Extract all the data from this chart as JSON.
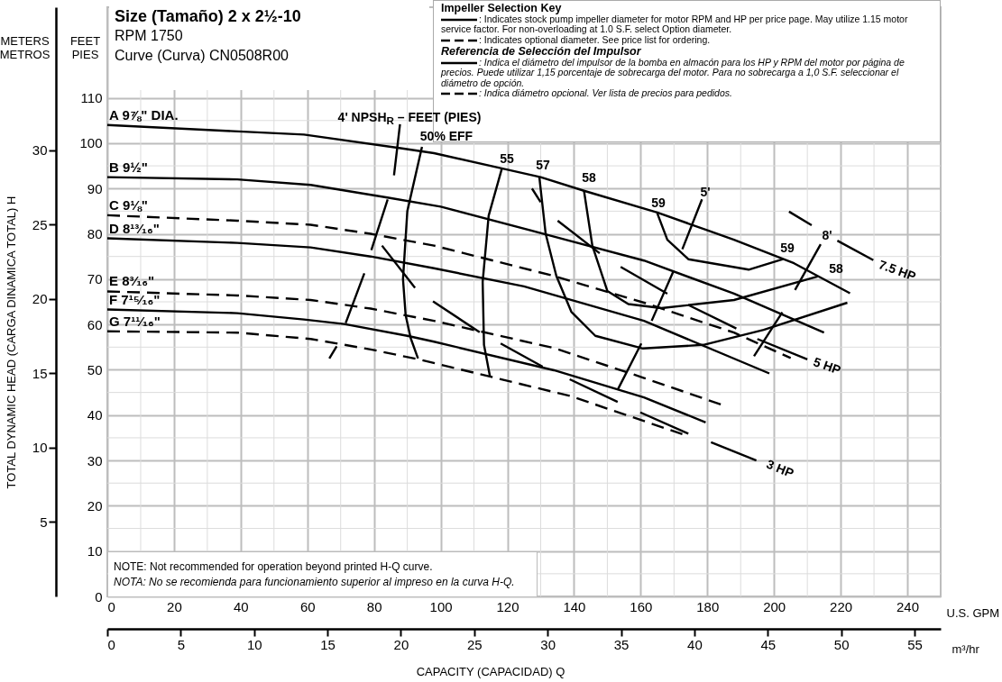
{
  "chart_data": {
    "type": "line",
    "title": "Size (Tamaño) 2 x 2½-10",
    "subtitle": "RPM 1750\nCurve (Curva) CN0508R00",
    "xlabel": "U.S. GPM",
    "x2label": "m³/hr",
    "ylabel": "FEET\nPIES",
    "y2label": "METERS\nMETROS",
    "xlim": [
      0,
      250
    ],
    "xticks": [
      0,
      20,
      40,
      60,
      80,
      100,
      120,
      140,
      160,
      180,
      200,
      220,
      240
    ],
    "x2lim": [
      0,
      56.78
    ],
    "x2ticks": [
      0,
      5,
      10,
      15,
      20,
      25,
      30,
      35,
      40,
      45,
      50,
      55
    ],
    "ylim": [
      0,
      130
    ],
    "yticks": [
      0,
      10,
      20,
      30,
      40,
      50,
      60,
      70,
      80,
      90,
      100,
      110
    ],
    "y2lim": [
      0,
      39.62
    ],
    "y2ticks": [
      5,
      10,
      15,
      20,
      25,
      30
    ],
    "grid": true,
    "series": [
      {
        "name": "A 9⅞\" DIA.",
        "color": "#000000",
        "x": [
          0,
          59,
          88,
          98,
          118,
          130,
          143,
          165,
          188,
          206,
          222.8
        ],
        "values": [
          104,
          101.9,
          98.9,
          97.8,
          94.5,
          92.5,
          89.5,
          84.7,
          78.7,
          73.5,
          66.9
        ]
      },
      {
        "name": "B 9½\"",
        "color": "#000000",
        "x": [
          0,
          39,
          61,
          84,
          100,
          134,
          161,
          188,
          215
        ],
        "values": [
          92.5,
          92,
          90.8,
          88,
          86,
          79.4,
          74.1,
          66.8,
          58.2
        ]
      },
      {
        "name": "C 9⅛\"",
        "color": "#000000",
        "line_style": "dashed",
        "x": [
          0,
          39,
          61,
          79,
          98,
          134,
          161,
          188,
          205
        ],
        "values": [
          84.1,
          82.9,
          82,
          80,
          77.4,
          70.7,
          64.8,
          58.2,
          52.6
        ]
      },
      {
        "name": "D 8¹³⁄₁₆\"",
        "color": "#000000",
        "x": [
          0,
          39,
          61,
          79,
          98,
          125,
          161,
          198.6
        ],
        "values": [
          79,
          78,
          77,
          75,
          72.4,
          68.4,
          60.8,
          49.2
        ]
      },
      {
        "name": "E 8³⁄₁₆\"",
        "color": "#000000",
        "line_style": "dashed",
        "x": [
          0,
          39,
          61,
          79,
          98,
          134,
          161,
          184.7
        ],
        "values": [
          67.3,
          66.4,
          65.4,
          63.5,
          60.8,
          54.8,
          48.2,
          42.2
        ]
      },
      {
        "name": "F 7¹⁵⁄₁₆\"",
        "color": "#000000",
        "x": [
          0,
          39,
          59,
          71,
          90,
          98,
          134,
          161,
          179.5
        ],
        "values": [
          63.3,
          62.5,
          61.1,
          60.1,
          57.5,
          56.2,
          49.9,
          43.9,
          38.4
        ]
      },
      {
        "name": "G 7¹¹⁄₁₆\"",
        "color": "#000000",
        "line_style": "dashed",
        "x": [
          0,
          39,
          61,
          79,
          94,
          139,
          172.5
        ],
        "values": [
          58.5,
          58.2,
          56.8,
          54.5,
          52.2,
          44.2,
          35.8
        ]
      },
      {
        "color": "#000000",
        "x": [
          94.4,
          90,
          88.7,
          89.5,
          91,
          93.2
        ],
        "values": [
          99.2,
          85,
          70,
          62,
          57,
          52.5
        ]
      },
      {
        "color": "#000000",
        "x": [
          118.4,
          114.4,
          112.6,
          113,
          114.8
        ],
        "values": [
          94.5,
          84,
          69.4,
          55.5,
          48.5
        ]
      },
      {
        "color": "#000000",
        "x": [
          129.6,
          131.5,
          134.7,
          139.2,
          146.4,
          160.7,
          178.8,
          196.9,
          222
        ],
        "values": [
          92.5,
          80,
          70.7,
          62.8,
          57.5,
          54.7,
          55.5,
          58.8,
          64.8
        ]
      },
      {
        "color": "#000000",
        "x": [
          143,
          145.5,
          150,
          156.3,
          166.2,
          188,
          213.1
        ],
        "values": [
          89.5,
          77.4,
          67.4,
          64.5,
          63.6,
          65.4,
          70.6
        ]
      },
      {
        "color": "#000000",
        "x": [
          165,
          168,
          174.3,
          192.4,
          202.7
        ],
        "values": [
          84.5,
          78.7,
          74.4,
          72.1,
          74.4
        ]
      },
      {
        "color": "#000000",
        "x": [
          87.8,
          86,
          85,
          84.1,
          79.2,
          78,
          77.1,
          71.5,
          70,
          68.8,
          66.6
        ],
        "values": [
          104.2,
          92.9,
          null,
          87.6,
          76.4,
          null,
          71.3,
          60.3,
          null,
          55.2,
          52.5
        ]
      },
      {
        "color": "#000000",
        "x": [
          178.4,
          172.5,
          171,
          169.8,
          163.3,
          162,
          160.2,
          153.1
        ],
        "values": [
          87.6,
          76.6,
          null,
          71.7,
          60.8,
          null,
          55.8,
          45.6
        ]
      },
      {
        "color": "#000000",
        "x": [
          214,
          206.3,
          204,
          202.5,
          194
        ],
        "values": [
          77.7,
          67.6,
          null,
          62.7,
          53
        ]
      },
      {
        "color": "#000000",
        "x": [
          82.4,
          92.3,
          95,
          97.7,
          111.7,
          115,
          118,
          130.6,
          135,
          138.7,
          153.1,
          157,
          159.9,
          174.3,
          178,
          181.1,
          194.7
        ],
        "values": [
          77.4,
          68.1,
          null,
          65.1,
          58.3,
          null,
          55.8,
          50.7,
          null,
          47.9,
          42.9,
          null,
          40.6,
          35.9,
          null,
          34,
          30
        ]
      },
      {
        "color": "#000000",
        "x": [
          127.4,
          130,
          132,
          135.1,
          147.7,
          151,
          154,
          168,
          171,
          174.3,
          188.7,
          192,
          195,
          210
        ],
        "values": [
          90,
          87,
          null,
          82.9,
          75.7,
          null,
          72.7,
          66.8,
          null,
          64.3,
          59.1,
          null,
          56.8,
          52.3
        ]
      },
      {
        "color": "#000000",
        "x": [
          204.5,
          211.3,
          215,
          219,
          229.8
        ],
        "values": [
          84.9,
          81.9,
          null,
          78.5,
          74.2
        ]
      }
    ],
    "annotations": [
      "Impeller Selection Key",
      ": Indicates stock pump impeller diameter for motor RPM and HP per price page. May utilize 1.15 motor service factor. For non-overloading at 1.0 S.F. select Option diameter.",
      ": Indicates optional diameter. See price list for ordering.",
      "Referencia de Selección del Impulsor",
      ": Indica el diámetro del impulsor de la bomba en almacón para los HP y RPM del motor por página de precios. Puede utilizar 1,15 porcentaje de sobrecarga del motor. Para no sobrecarga a 1,0 S.F. seleccionar el diámetro de opción.",
      ": Indica diámetro opcional. Ver lista de precios para pedidos.",
      "NOTE: Not recommended for operation beyond printed H-Q curve.",
      "NOTA: No se recomienda para funcionamiento superior al impreso en la curva H-Q.",
      "TOTAL DYNAMIC HEAD (CARGA DINAMICA TOTAL) H",
      "CAPACITY (CAPACIDAD) Q",
      "4' NPSH$_{R}$ – FEET (PIES)",
      "50% EFF",
      "55",
      "57",
      "58",
      "59",
      "5'",
      "8'",
      "59",
      "58",
      "7.5 HP",
      "5 HP",
      "3 HP"
    ]
  }
}
